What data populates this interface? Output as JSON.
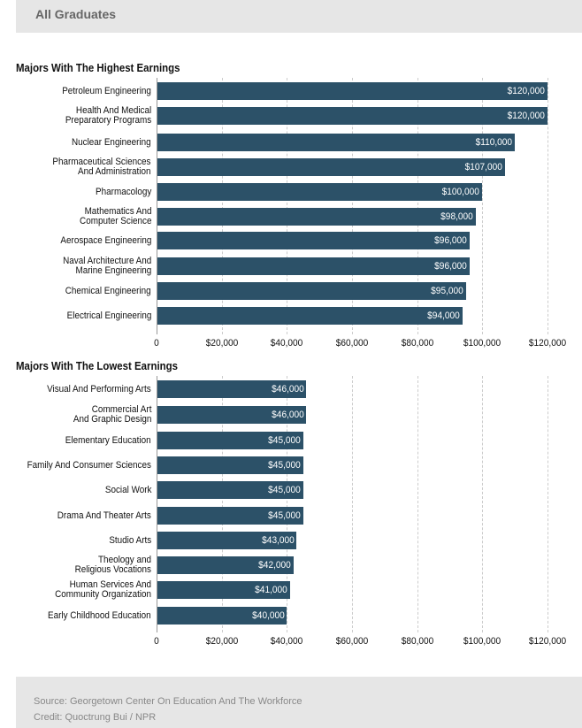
{
  "header": {
    "title": "All Graduates"
  },
  "chart_data": [
    {
      "type": "bar",
      "orientation": "horizontal",
      "title": "Majors With The Highest Earnings",
      "categories": [
        "Petroleum Engineering",
        "Health And Medical\nPreparatory Programs",
        "Nuclear Engineering",
        "Pharmaceutical Sciences\nAnd Administration",
        "Pharmacology",
        "Mathematics And\nComputer Science",
        "Aerospace Engineering",
        "Naval Architecture And\nMarine Engineering",
        "Chemical Engineering",
        "Electrical Engineering"
      ],
      "values": [
        120000,
        120000,
        110000,
        107000,
        100000,
        98000,
        96000,
        96000,
        95000,
        94000
      ],
      "data_labels": [
        "$120,000",
        "$120,000",
        "$110,000",
        "$107,000",
        "$100,000",
        "$98,000",
        "$96,000",
        "$96,000",
        "$95,000",
        "$94,000"
      ],
      "xlim": [
        0,
        120000
      ],
      "x_ticks": [
        "0",
        "$20,000",
        "$40,000",
        "$60,000",
        "$80,000",
        "$100,000",
        "$120,000"
      ],
      "grid": true,
      "color": "#2c5168"
    },
    {
      "type": "bar",
      "orientation": "horizontal",
      "title": "Majors With The Lowest Earnings",
      "categories": [
        "Visual And Performing Arts",
        "Commercial Art\nAnd Graphic Design",
        "Elementary Education",
        "Family And Consumer Sciences",
        "Social Work",
        "Drama And Theater Arts",
        "Studio Arts",
        "Theology and\nReligious Vocations",
        "Human Services And\nCommunity Organization",
        "Early Childhood Education"
      ],
      "values": [
        46000,
        46000,
        45000,
        45000,
        45000,
        45000,
        43000,
        42000,
        41000,
        40000
      ],
      "data_labels": [
        "$46,000",
        "$46,000",
        "$45,000",
        "$45,000",
        "$45,000",
        "$45,000",
        "$43,000",
        "$42,000",
        "$41,000",
        "$40,000"
      ],
      "xlim": [
        0,
        120000
      ],
      "x_ticks": [
        "0",
        "$20,000",
        "$40,000",
        "$60,000",
        "$80,000",
        "$100,000",
        "$120,000"
      ],
      "grid": true,
      "color": "#2c5168"
    }
  ],
  "footer": {
    "source": "Source: Georgetown Center On Education And The Workforce",
    "credit": "Credit: Quoctrung Bui / NPR"
  }
}
